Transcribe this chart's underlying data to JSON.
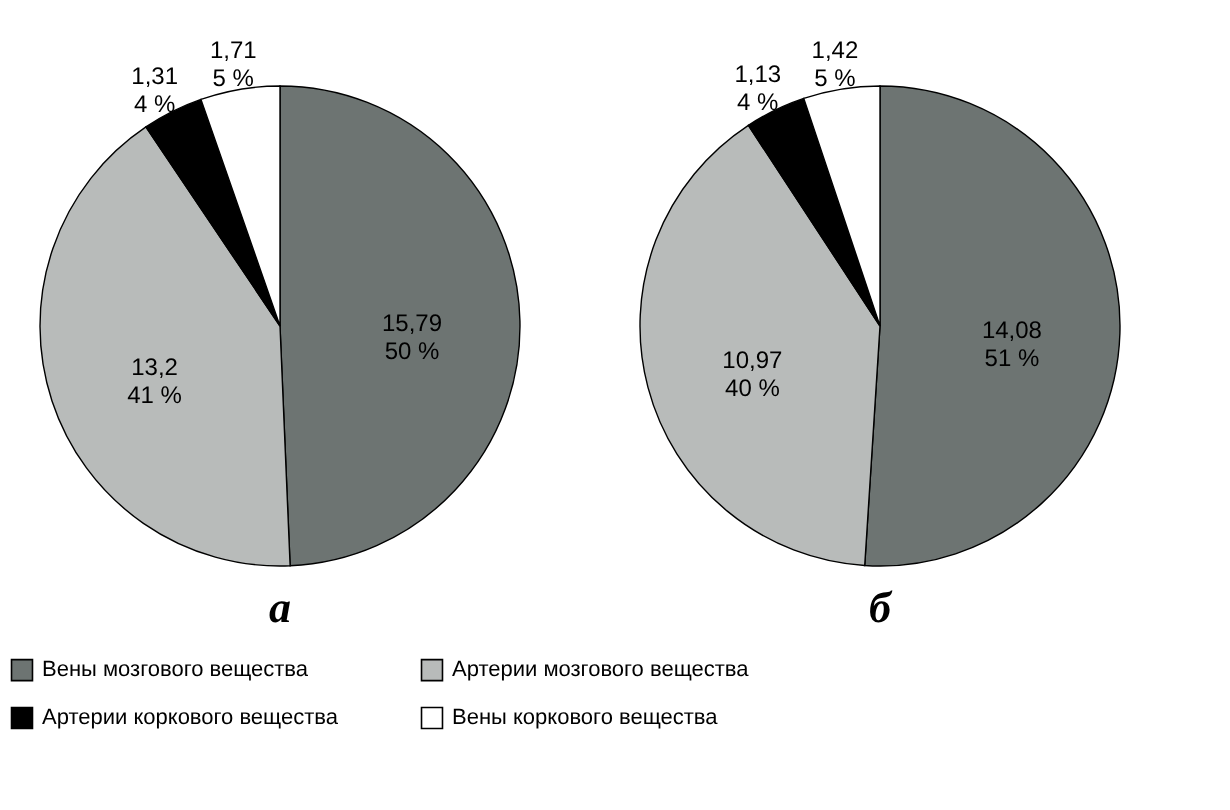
{
  "chart_data": [
    {
      "type": "pie",
      "title": "а",
      "categories": [
        "Вены мозгового вещества",
        "Артерии мозгового вещества",
        "Артерии коркового вещества",
        "Вены коркового вещества"
      ],
      "values": [
        15.79,
        13.2,
        1.31,
        1.71
      ],
      "value_labels": [
        "15,79\n50 %",
        "13,2\n41 %",
        "1,31\n4 %",
        "1,71\n5 %"
      ],
      "colors": [
        "#6d7472",
        "#b8bbba",
        "#000000",
        "#ffffff"
      ],
      "legend": "bottom"
    },
    {
      "type": "pie",
      "title": "б",
      "values": [
        14.08,
        10.97,
        1.13,
        1.42
      ],
      "value_labels": [
        "14,08\n51 %",
        "10,97\n40 %",
        "1,13\n4 %",
        "1,42\n5 %"
      ],
      "colors": [
        "#6d7472",
        "#b8bbba",
        "#000000",
        "#ffffff"
      ]
    }
  ]
}
